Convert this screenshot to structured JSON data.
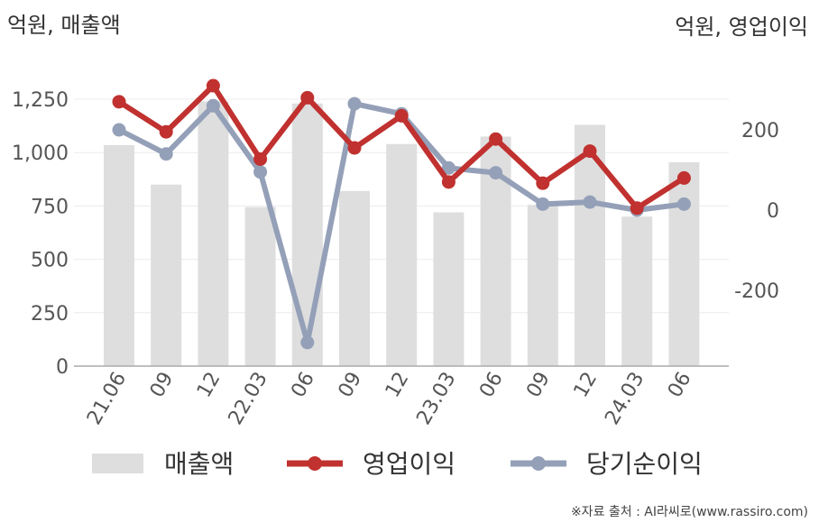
{
  "chart_data": {
    "type": "bar+line",
    "left_unit": "억원, 매출액",
    "right_unit": "억원, 영업이익",
    "categories": [
      "21.06",
      "09",
      "12",
      "22.03",
      "06",
      "09",
      "12",
      "23.03",
      "06",
      "09",
      "12",
      "24.03",
      "06"
    ],
    "left_axis": {
      "ticks": [
        0,
        250,
        500,
        750,
        1000,
        1250
      ],
      "tick_labels": [
        "0",
        "250",
        "500",
        "750",
        "1,000",
        "1,250"
      ],
      "range": [
        0,
        1250
      ]
    },
    "right_axis": {
      "ticks": [
        -200,
        0,
        200
      ],
      "tick_labels": [
        "-200",
        "0",
        "200"
      ]
    },
    "series": [
      {
        "name": "매출액",
        "type": "bar",
        "axis": "left",
        "color": "#dedede",
        "values": [
          1035,
          850,
          1240,
          745,
          1230,
          820,
          1040,
          720,
          1075,
          755,
          1130,
          700,
          955
        ]
      },
      {
        "name": "영업이익",
        "type": "line",
        "axis": "right",
        "color": "#c0312f",
        "values": [
          270,
          195,
          310,
          127,
          280,
          155,
          235,
          70,
          177,
          67,
          147,
          5,
          80
        ]
      },
      {
        "name": "당기순이익",
        "type": "line",
        "axis": "right",
        "color": "#94a0b8",
        "values": [
          200,
          140,
          260,
          95,
          -330,
          265,
          240,
          105,
          93,
          15,
          20,
          0,
          15
        ]
      }
    ],
    "grid": true,
    "legend_position": "bottom"
  },
  "source_text": "※자료 출처 : AI라씨로(www.rassiro.com)"
}
